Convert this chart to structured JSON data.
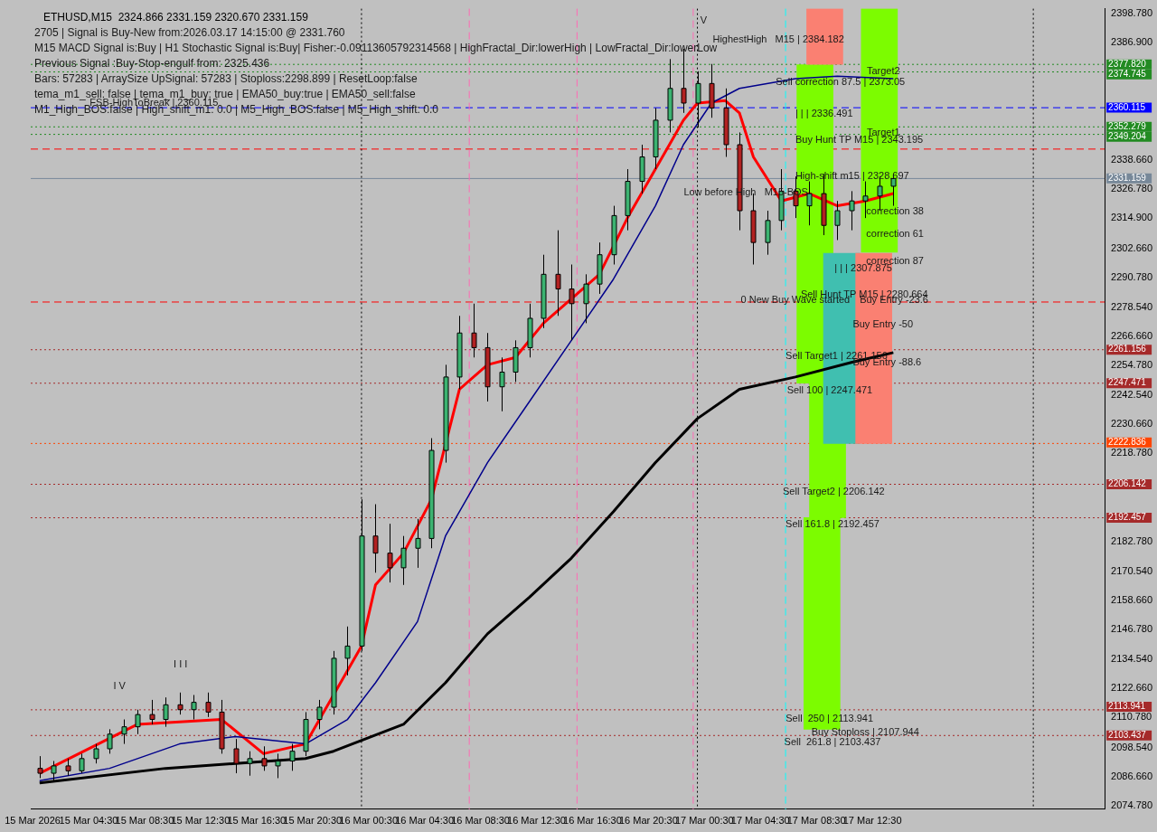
{
  "chart_data": {
    "type": "candlestick",
    "title": "ETHUSD,M15  2324.866 2331.159 2320.670 2331.159",
    "annotations": [
      "2705 | Signal is Buy-New from:2026.03.17 14:15:00 @ 2331.760",
      "M15 MACD Signal is:Buy | H1 Stochastic Signal is:Buy| Fisher:-0.09113605792314568 | HighFractal_Dir:lowerHigh | LowFractal_Dir:lowerLow",
      "Previous Signal :Buy-Stop-engulf from: 2325.436",
      "Bars: 57283 | ArraySize UpSignal: 57283 | Stoploss:2298.899 | ResetLoop:false",
      "tema_m1_sell: false | tema_m1_buy: true | EMA50_buy:true | EMA50_sell:false",
      "M1_High_BOS:false | High_shift_m1: 0.0 | M5_High_BOS:false | M5_High_shift: 0.0",
      "FSB-HighToBreak | 2360.115",
      "HighestHigh   M15 | 2384.182",
      {
        "text": "V",
        "x": "2026-03-17T00:12",
        "y": 2395.5
      },
      "I V",
      "I I I",
      {
        "text": "Sell correction 87.5 | 2373.05",
        "x": "2026-03-17T05:36",
        "y": 2370.4
      },
      {
        "text": "Target2",
        "x": "2026-03-17T12:06",
        "y": 2375
      },
      {
        "text": "| | | 2336.491",
        "x": "2026-03-17T07:00",
        "y": 2357.7
      },
      {
        "text": "Buy Hunt TP M15 | 2343.195",
        "x": "2026-03-17T07:00",
        "y": 2346.8
      },
      {
        "text": "Target1",
        "x": "2026-03-17T12:06",
        "y": 2349.7
      },
      {
        "text": "High-shift m15 | 2328.697",
        "x": "2026-03-17T07:00",
        "y": 2332.2
      },
      "Low before High   M15-BOS",
      "correction 38",
      "correction 61",
      "correction 87",
      {
        "text": "| | | 2307.875",
        "x": "2026-03-17T09:48",
        "y": 2294.4
      },
      "Sell Hunt TP M15 | 2280.664",
      {
        "text": "0 New Buy Wave started",
        "x": "2026-03-17T03:06",
        "y": 2281.5
      },
      {
        "text": "Buy Entry -23.6",
        "x": "2026-03-17T11:36",
        "y": 2281.5
      },
      {
        "text": "Buy Entry -50",
        "x": "2026-03-17T11:06",
        "y": 2271.5
      },
      {
        "text": "Sell Target1 | 2261.156",
        "x": "2026-03-17T06:18",
        "y": 2258.4
      },
      {
        "text": "Buy Entry -88.6",
        "x": "2026-03-17T11:06",
        "y": 2255.9
      },
      {
        "text": "Sell 100 | 2247.471",
        "x": "2026-03-17T06:24",
        "y": 2244.6
      },
      {
        "text": "Sell Target2 | 2206.142",
        "x": "2026-03-17T06:06",
        "y": 2203.2
      },
      {
        "text": "Sell 161.8 | 2192.457",
        "x": "2026-03-17T06:18",
        "y": 2189.7
      },
      "Sell  250 | 2113.941",
      "Buy Stoploss | 2107.944",
      {
        "text": "Sell  261.8 | 2103.437",
        "x": "2026-03-17T06:12",
        "y": 2100.6
      }
    ],
    "x": [
      "2026-03-15T01:00",
      "2026-03-15T02:00",
      "2026-03-15T03:00",
      "2026-03-15T04:00",
      "2026-03-15T05:00",
      "2026-03-15T06:00",
      "2026-03-15T07:00",
      "2026-03-15T08:00",
      "2026-03-15T09:00",
      "2026-03-15T10:00",
      "2026-03-15T11:00",
      "2026-03-15T12:00",
      "2026-03-15T13:00",
      "2026-03-15T14:00",
      "2026-03-15T15:00",
      "2026-03-15T16:00",
      "2026-03-15T17:00",
      "2026-03-15T18:00",
      "2026-03-15T19:00",
      "2026-03-15T20:00",
      "2026-03-15T21:00",
      "2026-03-15T22:00",
      "2026-03-15T23:00",
      "2026-03-16T00:00",
      "2026-03-16T01:00",
      "2026-03-16T02:00",
      "2026-03-16T03:00",
      "2026-03-16T04:00",
      "2026-03-16T05:00",
      "2026-03-16T06:00",
      "2026-03-16T07:00",
      "2026-03-16T08:00",
      "2026-03-16T09:00",
      "2026-03-16T10:00",
      "2026-03-16T11:00",
      "2026-03-16T12:00",
      "2026-03-16T13:00",
      "2026-03-16T14:00",
      "2026-03-16T15:00",
      "2026-03-16T16:00",
      "2026-03-16T17:00",
      "2026-03-16T18:00",
      "2026-03-16T19:00",
      "2026-03-16T20:00",
      "2026-03-16T21:00",
      "2026-03-16T22:00",
      "2026-03-16T23:00",
      "2026-03-17T00:00",
      "2026-03-17T01:00",
      "2026-03-17T02:00",
      "2026-03-17T03:00",
      "2026-03-17T04:00",
      "2026-03-17T05:00",
      "2026-03-17T06:00",
      "2026-03-17T07:00",
      "2026-03-17T08:00",
      "2026-03-17T09:00",
      "2026-03-17T10:00",
      "2026-03-17T11:00",
      "2026-03-17T12:00",
      "2026-03-17T13:00",
      "2026-03-17T14:00"
    ],
    "ohlc": [
      [
        2090,
        2095,
        2086,
        2088
      ],
      [
        2088,
        2093,
        2085,
        2091
      ],
      [
        2091,
        2094,
        2087,
        2089
      ],
      [
        2089,
        2096,
        2088,
        2094
      ],
      [
        2094,
        2100,
        2092,
        2098
      ],
      [
        2098,
        2106,
        2096,
        2104
      ],
      [
        2104,
        2110,
        2100,
        2107
      ],
      [
        2107,
        2114,
        2104,
        2112
      ],
      [
        2112,
        2118,
        2108,
        2110
      ],
      [
        2110,
        2119,
        2107,
        2116
      ],
      [
        2116,
        2121,
        2112,
        2114
      ],
      [
        2114,
        2120,
        2110,
        2117
      ],
      [
        2117,
        2121,
        2111,
        2113
      ],
      [
        2113,
        2118,
        2096,
        2098
      ],
      [
        2098,
        2102,
        2088,
        2092
      ],
      [
        2092,
        2097,
        2087,
        2094
      ],
      [
        2094,
        2099,
        2089,
        2091
      ],
      [
        2091,
        2096,
        2086,
        2093
      ],
      [
        2093,
        2100,
        2089,
        2097
      ],
      [
        2097,
        2113,
        2095,
        2110
      ],
      [
        2110,
        2118,
        2106,
        2115
      ],
      [
        2115,
        2138,
        2112,
        2135
      ],
      [
        2135,
        2148,
        2128,
        2140
      ],
      [
        2140,
        2200,
        2138,
        2185
      ],
      [
        2185,
        2198,
        2170,
        2178
      ],
      [
        2178,
        2190,
        2166,
        2172
      ],
      [
        2172,
        2185,
        2165,
        2180
      ],
      [
        2180,
        2192,
        2172,
        2184
      ],
      [
        2184,
        2225,
        2180,
        2220
      ],
      [
        2220,
        2255,
        2215,
        2250
      ],
      [
        2250,
        2275,
        2245,
        2268
      ],
      [
        2268,
        2280,
        2258,
        2262
      ],
      [
        2262,
        2268,
        2240,
        2246
      ],
      [
        2246,
        2258,
        2236,
        2252
      ],
      [
        2252,
        2265,
        2248,
        2262
      ],
      [
        2262,
        2280,
        2258,
        2274
      ],
      [
        2274,
        2300,
        2270,
        2292
      ],
      [
        2292,
        2310,
        2275,
        2286
      ],
      [
        2286,
        2296,
        2265,
        2280
      ],
      [
        2280,
        2292,
        2272,
        2288
      ],
      [
        2288,
        2305,
        2284,
        2300
      ],
      [
        2300,
        2320,
        2296,
        2316
      ],
      [
        2316,
        2335,
        2310,
        2330
      ],
      [
        2330,
        2345,
        2325,
        2340
      ],
      [
        2340,
        2360,
        2335,
        2355
      ],
      [
        2355,
        2380,
        2350,
        2368
      ],
      [
        2368,
        2384.182,
        2358,
        2362
      ],
      [
        2362,
        2375,
        2352,
        2370
      ],
      [
        2370,
        2378,
        2356,
        2360
      ],
      [
        2360,
        2368,
        2340,
        2345
      ],
      [
        2345,
        2350,
        2310,
        2318
      ],
      [
        2318,
        2325,
        2296,
        2305
      ],
      [
        2305,
        2318,
        2300,
        2314
      ],
      [
        2314,
        2335,
        2310,
        2326
      ],
      [
        2326,
        2332,
        2315,
        2320
      ],
      [
        2320,
        2330,
        2312,
        2325
      ],
      [
        2325,
        2333,
        2308,
        2312
      ],
      [
        2312,
        2322,
        2306,
        2318
      ],
      [
        2318,
        2326,
        2310,
        2322
      ],
      [
        2322,
        2330,
        2315,
        2324
      ],
      [
        2324,
        2332,
        2318,
        2328
      ],
      [
        2328,
        2333,
        2320,
        2331.159
      ]
    ],
    "series": [
      {
        "type": "bar",
        "x": [
          "2026-03-17T08:24",
          "2026-03-17T08:54",
          "2026-03-17T09:06",
          "2026-03-17T09:18",
          "2026-03-17T10:18",
          "2026-03-17T12:36",
          "2026-03-17T13:00"
        ],
        "base": [
          2247.5,
          2106,
          2377.8,
          2192.5,
          2222.8,
          2222.8,
          2301
        ],
        "values": [
          130.2,
          86.5,
          22.8,
          55,
          77.8,
          77.8,
          99.6
        ],
        "colors": [
          "#7cfc00",
          "#7cfc00",
          "#fa8072",
          "#7cfc00",
          "#40bfb0",
          "#fa8072",
          "#7cfc00"
        ]
      },
      {
        "type": "line",
        "color": "#000000",
        "x": [
          "2026-03-15T01:00",
          "2026-03-15T10:00",
          "2026-03-15T15:00",
          "2026-03-15T20:00",
          "2026-03-15T22:00",
          "2026-03-16T03:00",
          "2026-03-16T06:00",
          "2026-03-16T09:00",
          "2026-03-16T12:00",
          "2026-03-16T15:00",
          "2026-03-16T18:00",
          "2026-03-16T21:00",
          "2026-03-17T00:00",
          "2026-03-17T03:00",
          "2026-03-17T07:00",
          "2026-03-17T11:00",
          "2026-03-17T14:00"
        ],
        "values": [
          2084,
          2090,
          2092,
          2094,
          2097,
          2108,
          2125,
          2145,
          2160,
          2176,
          2195,
          2215,
          2233,
          2245,
          2250,
          2256,
          2260
        ]
      },
      {
        "type": "line",
        "color": "#00008b",
        "x": [
          "2026-03-15T01:00",
          "2026-03-15T06:00",
          "2026-03-15T11:00",
          "2026-03-15T15:00",
          "2026-03-15T20:00",
          "2026-03-15T23:00",
          "2026-03-16T01:00",
          "2026-03-16T04:00",
          "2026-03-16T06:00",
          "2026-03-16T09:00",
          "2026-03-16T12:00",
          "2026-03-16T15:00",
          "2026-03-16T18:00",
          "2026-03-16T21:00",
          "2026-03-16T23:00",
          "2026-03-17T01:00",
          "2026-03-17T03:00",
          "2026-03-17T07:00",
          "2026-03-17T10:00",
          "2026-03-17T14:00"
        ],
        "values": [
          2085,
          2090,
          2100,
          2103,
          2100,
          2110,
          2125,
          2150,
          2185,
          2215,
          2240,
          2265,
          2290,
          2320,
          2345,
          2362,
          2368,
          2372,
          2373,
          2372
        ]
      },
      {
        "type": "line",
        "color": "#ff0000",
        "x": [
          "2026-03-15T01:00",
          "2026-03-15T08:00",
          "2026-03-15T14:00",
          "2026-03-15T17:00",
          "2026-03-15T20:00",
          "2026-03-15T22:00",
          "2026-03-16T00:00",
          "2026-03-16T01:00",
          "2026-03-16T03:00",
          "2026-03-16T05:00",
          "2026-03-16T07:00",
          "2026-03-16T09:00",
          "2026-03-16T11:00",
          "2026-03-16T13:00",
          "2026-03-16T15:00",
          "2026-03-16T17:00",
          "2026-03-16T19:00",
          "2026-03-16T21:00",
          "2026-03-16T23:00",
          "2026-03-17T00:00",
          "2026-03-17T02:00",
          "2026-03-17T03:00",
          "2026-03-17T04:00",
          "2026-03-17T06:00",
          "2026-03-17T08:00",
          "2026-03-17T10:00",
          "2026-03-17T12:00",
          "2026-03-17T14:00"
        ],
        "values": [
          2088,
          2108,
          2110,
          2096,
          2100,
          2120,
          2140,
          2165,
          2178,
          2200,
          2245,
          2255,
          2258,
          2272,
          2282,
          2292,
          2315,
          2335,
          2355,
          2362,
          2363,
          2358,
          2340,
          2322,
          2325,
          2320,
          2322,
          2325
        ]
      }
    ],
    "ref_lines": [
      {
        "axis": "y",
        "value": 2377.82,
        "label": "2377.820",
        "color": "#228b22",
        "line_style": "dotted"
      },
      {
        "axis": "y",
        "value": 2374.745,
        "label": "2374.745",
        "color": "#228b22",
        "line_style": "dotted"
      },
      {
        "axis": "y",
        "value": 2360.115,
        "label": "2360.115",
        "color": "#0000ff",
        "line_style": "dashed"
      },
      {
        "axis": "y",
        "value": 2352.279,
        "label": "2352.279",
        "color": "#228b22",
        "line_style": "dotted"
      },
      {
        "axis": "y",
        "value": 2349.204,
        "label": "2349.204",
        "color": "#228b22",
        "line_style": "dotted"
      },
      {
        "axis": "y",
        "value": 2343.195,
        "label": null,
        "color": "#ff0000",
        "line_style": "dashed"
      },
      {
        "axis": "y",
        "value": 2331.159,
        "label": "2331.159",
        "color": "#778899",
        "line_style": "solid"
      },
      {
        "axis": "y",
        "value": 2280.664,
        "label": null,
        "color": "#ff0000",
        "line_style": "dashed"
      },
      {
        "axis": "y",
        "value": 2261.156,
        "label": "2261.156",
        "color": "#a52a2a",
        "line_style": "dotted"
      },
      {
        "axis": "y",
        "value": 2247.471,
        "label": "2247.471",
        "color": "#a52a2a",
        "line_style": "dotted"
      },
      {
        "axis": "y",
        "value": 2222.836,
        "label": "2222.836",
        "color": "#ff4500",
        "line_style": "dotted"
      },
      {
        "axis": "y",
        "value": 2206.142,
        "label": "2206.142",
        "color": "#a52a2a",
        "line_style": "dotted"
      },
      {
        "axis": "y",
        "value": 2192.457,
        "label": "2192.457",
        "color": "#a52a2a",
        "line_style": "dotted"
      },
      {
        "axis": "y",
        "value": 2113.941,
        "label": "2113.941",
        "color": "#a52a2a",
        "line_style": "dotted"
      },
      {
        "axis": "y",
        "value": 2103.437,
        "label": "2103.437",
        "color": "#a52a2a",
        "line_style": "dotted"
      },
      {
        "axis": "x",
        "value": "2026-03-16T00:00",
        "label": null,
        "color": "#000000",
        "line_style": "dotted"
      },
      {
        "axis": "x",
        "value": "2026-03-17T00:00",
        "label": null,
        "color": "#000000",
        "line_style": "dotted"
      },
      {
        "axis": "x",
        "value": "2026-03-18T00:00",
        "label": null,
        "color": "#000000",
        "line_style": "dotted"
      },
      {
        "axis": "x",
        "value": "2026-03-16T07:42",
        "label": null,
        "color": "#ff69b4",
        "line_style": "dashed"
      },
      {
        "axis": "x",
        "value": "2026-03-16T15:24",
        "label": null,
        "color": "#ff69b4",
        "line_style": "dashed"
      },
      {
        "axis": "x",
        "value": "2026-03-16T23:42",
        "label": null,
        "color": "#ff69b4",
        "line_style": "dashed"
      },
      {
        "axis": "x",
        "value": "2026-03-17T06:18",
        "label": null,
        "color": "#00ffff",
        "line_style": "dashed"
      }
    ],
    "xlim": [
      "2026-03-15T00:22",
      "2026-03-18T05:06"
    ],
    "ylim": [
      2073.3,
      2400.6
    ],
    "xticks": [
      {
        "value": "2026-03-15T00:30",
        "label": "15 Mar 2026"
      },
      {
        "value": "2026-03-15T04:30",
        "label": "15 Mar 04:30"
      },
      {
        "value": "2026-03-15T08:30",
        "label": "15 Mar 08:30"
      },
      {
        "value": "2026-03-15T12:30",
        "label": "15 Mar 12:30"
      },
      {
        "value": "2026-03-15T16:30",
        "label": "15 Mar 16:30"
      },
      {
        "value": "2026-03-15T20:30",
        "label": "15 Mar 20:30"
      },
      {
        "value": "2026-03-16T00:30",
        "label": "16 Mar 00:30"
      },
      {
        "value": "2026-03-16T04:30",
        "label": "16 Mar 04:30"
      },
      {
        "value": "2026-03-16T08:30",
        "label": "16 Mar 08:30"
      },
      {
        "value": "2026-03-16T12:30",
        "label": "16 Mar 12:30"
      },
      {
        "value": "2026-03-16T16:30",
        "label": "16 Mar 16:30"
      },
      {
        "value": "2026-03-16T20:30",
        "label": "16 Mar 20:30"
      },
      {
        "value": "2026-03-17T00:30",
        "label": "17 Mar 00:30"
      },
      {
        "value": "2026-03-17T04:30",
        "label": "17 Mar 04:30"
      },
      {
        "value": "2026-03-17T08:30",
        "label": "17 Mar 08:30"
      },
      {
        "value": "2026-03-17T12:30",
        "label": "17 Mar 12:30"
      }
    ],
    "yticks": [
      {
        "value": 2398.78,
        "label": "2398.780"
      },
      {
        "value": 2386.9,
        "label": "2386.900"
      },
      {
        "value": 2338.66,
        "label": "2338.660"
      },
      {
        "value": 2326.78,
        "label": "2326.780"
      },
      {
        "value": 2314.9,
        "label": "2314.900"
      },
      {
        "value": 2302.66,
        "label": "2302.660"
      },
      {
        "value": 2290.78,
        "label": "2290.780"
      },
      {
        "value": 2278.54,
        "label": "2278.540"
      },
      {
        "value": 2266.66,
        "label": "2266.660"
      },
      {
        "value": 2254.78,
        "label": "2254.780"
      },
      {
        "value": 2242.54,
        "label": "2242.540"
      },
      {
        "value": 2230.66,
        "label": "2230.660"
      },
      {
        "value": 2218.78,
        "label": "2218.780"
      },
      {
        "value": 2182.78,
        "label": "2182.780"
      },
      {
        "value": 2170.54,
        "label": "2170.540"
      },
      {
        "value": 2158.66,
        "label": "2158.660"
      },
      {
        "value": 2146.78,
        "label": "2146.780"
      },
      {
        "value": 2134.54,
        "label": "2134.540"
      },
      {
        "value": 2122.66,
        "label": "2122.660"
      },
      {
        "value": 2110.78,
        "label": "2110.780"
      },
      {
        "value": 2098.54,
        "label": "2098.540"
      },
      {
        "value": 2086.66,
        "label": "2086.660"
      },
      {
        "value": 2074.78,
        "label": "2074.780"
      }
    ],
    "grid": false,
    "legend": false
  }
}
